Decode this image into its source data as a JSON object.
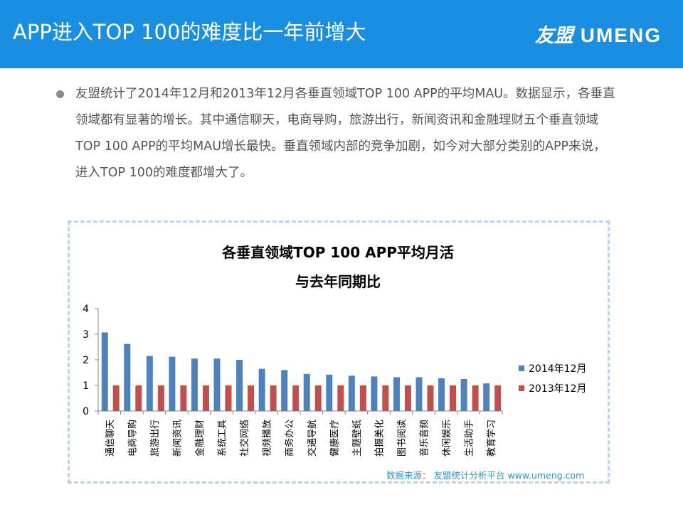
{
  "header": {
    "title": "APP进入TOP 100的难度比一年前增大",
    "logo_cn": "友盟",
    "logo_en": "UMENG"
  },
  "summary": "友盟统计了2014年12月和2013年12月各垂直领域TOP 100 APP的平均MAU。数据显示，各垂直领域都有显著的增长。其中通信聊天，电商导购，旅游出行，新闻资讯和金融理财五个垂直领域TOP 100 APP的平均MAU增长最快。垂直领域内部的竞争加剧，如今对大部分类别的APP来说，进入TOP 100的难度都增大了。",
  "source_note": "数据来源： 友盟统计分析平台 www.umeng.com",
  "colors": {
    "header": "#1a8ee1",
    "series_2014": "#4f81bd",
    "series_2013": "#c0504d"
  },
  "chart_data": {
    "type": "bar",
    "title_line1": "各垂直领域TOP 100 APP平均月活",
    "title_line2": "与去年同期比",
    "categories": [
      "通信聊天",
      "电商导购",
      "旅游出行",
      "新闻资讯",
      "金融理财",
      "系统工具",
      "社交网络",
      "视频播放",
      "商务办公",
      "交通导航",
      "健康医疗",
      "主题壁纸",
      "拍摄美化",
      "图书阅读",
      "音乐音频",
      "休闲娱乐",
      "生活助手",
      "教育学习"
    ],
    "series": [
      {
        "name": "2014年12月",
        "color": "#4f81bd",
        "values": [
          3.07,
          2.62,
          2.15,
          2.12,
          2.05,
          2.05,
          2.0,
          1.65,
          1.6,
          1.45,
          1.42,
          1.38,
          1.35,
          1.32,
          1.32,
          1.28,
          1.25,
          1.08
        ]
      },
      {
        "name": "2013年12月",
        "color": "#c0504d",
        "values": [
          1,
          1,
          1,
          1,
          1,
          1,
          1,
          1,
          1,
          1,
          1,
          1,
          1,
          1,
          1,
          1,
          1,
          1
        ]
      }
    ],
    "yticks": [
      0,
      1,
      2,
      3,
      4
    ],
    "ylim": [
      0,
      4
    ],
    "legend_position": "right"
  }
}
